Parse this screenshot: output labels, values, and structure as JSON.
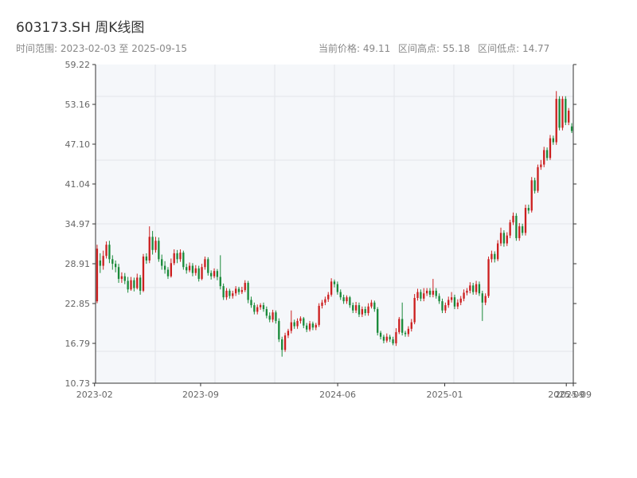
{
  "chart_data": {
    "type": "candlestick",
    "title": "603173.SH 周K线图",
    "subtitle": "时间范围: 2023-02-03 至 2025-09-15",
    "stats": {
      "current_price": "当前价格: 49.11",
      "range_high": "区间高点: 55.18",
      "range_low": "区间低点: 14.77"
    },
    "y_ticks": [
      "59.22",
      "53.16",
      "47.10",
      "41.04",
      "34.97",
      "28.91",
      "22.85",
      "16.79",
      "10.73"
    ],
    "ylim": [
      10.73,
      59.22
    ],
    "x_ticks": [
      {
        "label": "2023-02",
        "date": "2023-02-01"
      },
      {
        "label": "2023-09",
        "date": "2023-09-01"
      },
      {
        "label": "2024-06",
        "date": "2024-06-01"
      },
      {
        "label": "2025-01",
        "date": "2025-01-01"
      },
      {
        "label": "2025-09",
        "date": "2025-09-01"
      },
      {
        "label": "2025-09",
        "date": "2025-09-15"
      }
    ],
    "x_range": [
      "2023-02-03",
      "2025-09-15"
    ],
    "grid": true,
    "colors": {
      "up": "#cc1f1f",
      "down": "#1a8a3a",
      "background": "#f5f7fa",
      "grid": "#e2e5ea",
      "axis": "#333333"
    },
    "ohlc": [
      [
        23.2,
        31.2,
        22.9,
        31.8
      ],
      [
        29.4,
        28.6,
        27.5,
        30.5
      ],
      [
        28.6,
        30.1,
        28.0,
        30.9
      ],
      [
        30.1,
        31.8,
        29.7,
        32.3
      ],
      [
        31.8,
        29.6,
        29.0,
        32.4
      ],
      [
        29.6,
        28.9,
        28.0,
        30.2
      ],
      [
        28.9,
        28.4,
        27.6,
        29.4
      ],
      [
        28.4,
        26.6,
        26.0,
        28.9
      ],
      [
        26.6,
        27.0,
        26.0,
        27.6
      ],
      [
        27.0,
        26.3,
        25.8,
        27.5
      ],
      [
        26.3,
        25.0,
        24.5,
        26.9
      ],
      [
        25.0,
        26.4,
        24.8,
        26.9
      ],
      [
        26.4,
        25.2,
        24.7,
        26.8
      ],
      [
        25.2,
        26.8,
        25.0,
        27.4
      ],
      [
        26.8,
        24.8,
        24.2,
        27.2
      ],
      [
        24.8,
        30.0,
        24.6,
        30.4
      ],
      [
        30.0,
        29.4,
        28.9,
        30.5
      ],
      [
        29.4,
        33.0,
        29.0,
        34.6
      ],
      [
        33.0,
        31.0,
        30.3,
        33.9
      ],
      [
        31.0,
        32.4,
        30.6,
        33.0
      ],
      [
        32.4,
        29.6,
        29.2,
        32.9
      ],
      [
        29.6,
        28.6,
        28.0,
        30.3
      ],
      [
        28.6,
        28.0,
        27.4,
        29.3
      ],
      [
        28.0,
        27.0,
        26.6,
        28.4
      ],
      [
        27.0,
        29.0,
        26.8,
        29.7
      ],
      [
        29.0,
        30.5,
        28.7,
        31.1
      ],
      [
        30.5,
        29.6,
        29.0,
        31.0
      ],
      [
        29.6,
        30.6,
        29.2,
        31.1
      ],
      [
        30.6,
        28.4,
        28.0,
        30.9
      ],
      [
        28.4,
        27.9,
        27.4,
        28.9
      ],
      [
        27.9,
        28.6,
        27.6,
        29.1
      ],
      [
        28.6,
        27.5,
        27.0,
        29.0
      ],
      [
        27.5,
        28.2,
        27.1,
        28.7
      ],
      [
        28.2,
        26.6,
        26.2,
        28.6
      ],
      [
        26.6,
        28.4,
        26.4,
        28.9
      ],
      [
        28.4,
        29.6,
        28.0,
        30.0
      ],
      [
        29.6,
        27.5,
        27.1,
        29.9
      ],
      [
        27.5,
        27.0,
        26.5,
        27.9
      ],
      [
        27.0,
        27.8,
        26.7,
        28.2
      ],
      [
        27.8,
        26.9,
        26.4,
        28.1
      ],
      [
        26.9,
        25.5,
        25.0,
        30.2
      ],
      [
        25.5,
        23.8,
        23.4,
        25.9
      ],
      [
        23.8,
        24.8,
        23.4,
        25.2
      ],
      [
        24.8,
        24.0,
        23.6,
        25.1
      ],
      [
        24.0,
        24.4,
        23.6,
        24.8
      ],
      [
        24.4,
        25.1,
        24.0,
        25.5
      ],
      [
        25.1,
        24.6,
        24.2,
        25.4
      ],
      [
        24.6,
        24.9,
        24.3,
        25.4
      ],
      [
        24.9,
        26.0,
        24.6,
        26.4
      ],
      [
        26.0,
        23.4,
        22.9,
        26.3
      ],
      [
        23.4,
        22.6,
        22.2,
        23.9
      ],
      [
        22.6,
        21.6,
        21.2,
        23.0
      ],
      [
        21.6,
        22.3,
        21.2,
        22.7
      ],
      [
        22.3,
        22.6,
        21.9,
        22.9
      ],
      [
        22.6,
        22.0,
        21.6,
        23.0
      ],
      [
        22.0,
        21.0,
        20.6,
        22.4
      ],
      [
        21.0,
        20.4,
        20.0,
        21.5
      ],
      [
        20.4,
        21.5,
        20.0,
        21.9
      ],
      [
        21.5,
        20.2,
        19.8,
        21.8
      ],
      [
        20.2,
        17.4,
        17.0,
        20.6
      ],
      [
        17.4,
        15.8,
        14.77,
        17.8
      ],
      [
        15.8,
        18.0,
        15.5,
        18.4
      ],
      [
        18.0,
        18.7,
        17.6,
        19.0
      ],
      [
        18.7,
        20.0,
        18.3,
        21.8
      ],
      [
        20.0,
        19.4,
        19.0,
        20.4
      ],
      [
        19.4,
        20.2,
        19.0,
        20.6
      ],
      [
        20.2,
        20.6,
        19.8,
        20.9
      ],
      [
        20.6,
        19.5,
        19.1,
        20.8
      ],
      [
        19.5,
        18.9,
        18.5,
        19.9
      ],
      [
        18.9,
        19.8,
        18.6,
        20.2
      ],
      [
        19.8,
        19.2,
        18.8,
        20.1
      ],
      [
        19.2,
        19.6,
        18.8,
        19.9
      ],
      [
        19.6,
        22.5,
        19.3,
        22.9
      ],
      [
        22.5,
        23.0,
        22.1,
        23.4
      ],
      [
        23.0,
        23.5,
        22.6,
        23.9
      ],
      [
        23.5,
        24.2,
        23.1,
        24.6
      ],
      [
        24.2,
        26.2,
        23.9,
        26.7
      ],
      [
        26.2,
        25.8,
        25.3,
        26.5
      ],
      [
        25.8,
        24.6,
        24.2,
        26.2
      ],
      [
        24.6,
        23.8,
        23.4,
        25.0
      ],
      [
        23.8,
        23.2,
        22.8,
        24.2
      ],
      [
        23.2,
        23.8,
        22.8,
        24.1
      ],
      [
        23.8,
        22.6,
        22.2,
        24.0
      ],
      [
        22.6,
        21.8,
        21.4,
        23.0
      ],
      [
        21.8,
        22.6,
        21.4,
        23.1
      ],
      [
        22.6,
        21.2,
        20.8,
        23.0
      ],
      [
        21.2,
        22.0,
        20.8,
        22.4
      ],
      [
        22.0,
        21.4,
        21.0,
        22.4
      ],
      [
        21.4,
        22.4,
        21.0,
        22.9
      ],
      [
        22.4,
        23.0,
        22.1,
        23.4
      ],
      [
        23.0,
        22.0,
        21.6,
        23.3
      ],
      [
        22.0,
        18.4,
        18.0,
        22.3
      ],
      [
        18.4,
        17.8,
        17.4,
        18.7
      ],
      [
        17.8,
        17.2,
        16.8,
        18.1
      ],
      [
        17.2,
        17.8,
        16.9,
        18.3
      ],
      [
        17.8,
        17.4,
        17.0,
        18.1
      ],
      [
        17.4,
        16.8,
        16.5,
        17.8
      ],
      [
        16.8,
        18.5,
        16.4,
        19.1
      ],
      [
        18.5,
        20.5,
        18.2,
        20.8
      ],
      [
        20.5,
        18.4,
        18.0,
        23.0
      ],
      [
        18.4,
        18.2,
        17.8,
        18.7
      ],
      [
        18.2,
        19.0,
        17.8,
        19.4
      ],
      [
        19.0,
        20.0,
        18.6,
        20.5
      ],
      [
        20.0,
        23.7,
        19.7,
        24.3
      ],
      [
        23.7,
        24.6,
        23.3,
        25.1
      ],
      [
        24.6,
        23.6,
        23.2,
        25.0
      ],
      [
        23.6,
        24.4,
        23.2,
        25.2
      ],
      [
        24.4,
        24.8,
        24.0,
        25.2
      ],
      [
        24.8,
        24.2,
        23.8,
        25.2
      ],
      [
        24.2,
        24.8,
        23.8,
        26.6
      ],
      [
        24.8,
        24.0,
        23.6,
        25.2
      ],
      [
        24.0,
        23.2,
        22.8,
        24.4
      ],
      [
        23.2,
        21.8,
        21.4,
        23.6
      ],
      [
        21.8,
        22.6,
        21.4,
        23.0
      ],
      [
        22.6,
        23.4,
        22.2,
        23.9
      ],
      [
        23.4,
        23.8,
        23.0,
        24.6
      ],
      [
        23.8,
        22.4,
        22.0,
        24.2
      ],
      [
        22.4,
        23.0,
        22.0,
        23.5
      ],
      [
        23.0,
        23.6,
        22.6,
        24.0
      ],
      [
        23.6,
        24.5,
        23.2,
        25.0
      ],
      [
        24.5,
        24.8,
        24.1,
        25.2
      ],
      [
        24.8,
        25.6,
        24.4,
        26.1
      ],
      [
        25.6,
        24.6,
        24.2,
        26.0
      ],
      [
        24.6,
        25.8,
        24.2,
        26.3
      ],
      [
        25.8,
        24.4,
        24.0,
        26.2
      ],
      [
        24.4,
        23.0,
        20.2,
        24.8
      ],
      [
        23.0,
        24.0,
        22.6,
        24.4
      ],
      [
        24.0,
        29.6,
        23.7,
        30.0
      ],
      [
        29.6,
        30.4,
        29.1,
        30.9
      ],
      [
        30.4,
        29.6,
        29.1,
        30.8
      ],
      [
        29.6,
        32.0,
        29.3,
        32.5
      ],
      [
        32.0,
        33.6,
        31.6,
        34.4
      ],
      [
        33.6,
        32.0,
        31.5,
        34.0
      ],
      [
        32.0,
        33.2,
        31.6,
        33.7
      ],
      [
        33.2,
        35.2,
        32.8,
        35.6
      ],
      [
        35.2,
        36.2,
        34.8,
        36.7
      ],
      [
        36.2,
        32.8,
        32.4,
        36.6
      ],
      [
        32.8,
        34.6,
        32.4,
        35.1
      ],
      [
        34.6,
        33.6,
        33.2,
        35.0
      ],
      [
        33.6,
        37.4,
        33.2,
        37.9
      ],
      [
        37.4,
        37.0,
        36.5,
        37.9
      ],
      [
        37.0,
        41.6,
        36.7,
        42.1
      ],
      [
        41.6,
        40.0,
        39.6,
        42.0
      ],
      [
        40.0,
        43.6,
        39.7,
        44.0
      ],
      [
        43.6,
        44.0,
        43.2,
        44.7
      ],
      [
        44.0,
        46.2,
        43.6,
        46.7
      ],
      [
        46.2,
        45.0,
        44.6,
        46.6
      ],
      [
        45.0,
        48.0,
        44.7,
        48.5
      ],
      [
        48.0,
        47.4,
        47.0,
        48.4
      ],
      [
        47.4,
        54.0,
        47.0,
        55.18
      ],
      [
        54.0,
        49.6,
        49.2,
        54.4
      ],
      [
        49.6,
        54.0,
        49.2,
        54.4
      ],
      [
        54.0,
        50.4,
        50.0,
        54.4
      ],
      [
        50.4,
        52.2,
        50.0,
        52.6
      ],
      [
        49.8,
        49.11,
        48.8,
        50.3
      ]
    ]
  }
}
